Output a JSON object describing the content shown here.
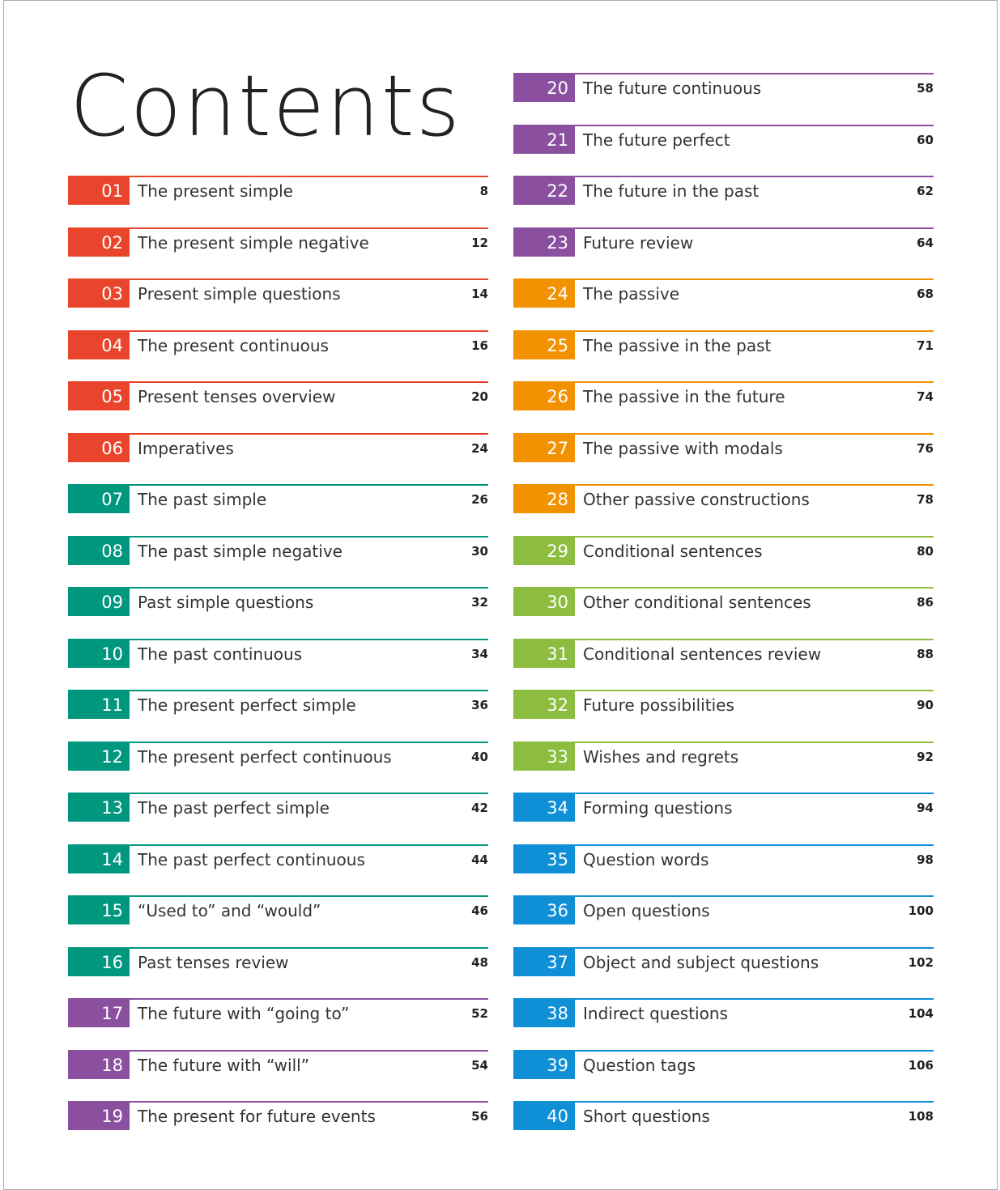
{
  "title": "Contents",
  "entries": [
    {
      "number": "01",
      "title": "The present simple",
      "page": 8,
      "color": "#e8452c"
    },
    {
      "number": "02",
      "title": "The present simple negative",
      "page": 12,
      "color": "#e8452c"
    },
    {
      "number": "03",
      "title": "Present simple questions",
      "page": 14,
      "color": "#e8452c"
    },
    {
      "number": "04",
      "title": "The present continuous",
      "page": 16,
      "color": "#e8452c"
    },
    {
      "number": "05",
      "title": "Present tenses overview",
      "page": 20,
      "color": "#e8452c"
    },
    {
      "number": "06",
      "title": "Imperatives",
      "page": 24,
      "color": "#e8452c"
    },
    {
      "number": "07",
      "title": "The past simple",
      "page": 26,
      "color": "#00977f"
    },
    {
      "number": "08",
      "title": "The past simple negative",
      "page": 30,
      "color": "#00977f"
    },
    {
      "number": "09",
      "title": "Past simple questions",
      "page": 32,
      "color": "#00977f"
    },
    {
      "number": "10",
      "title": "The past continuous",
      "page": 34,
      "color": "#00977f"
    },
    {
      "number": "11",
      "title": "The present perfect simple",
      "page": 36,
      "color": "#00977f"
    },
    {
      "number": "12",
      "title": "The present perfect continuous",
      "page": 40,
      "color": "#00977f"
    },
    {
      "number": "13",
      "title": "The past perfect simple",
      "page": 42,
      "color": "#00977f"
    },
    {
      "number": "14",
      "title": "The past perfect continuous",
      "page": 44,
      "color": "#00977f"
    },
    {
      "number": "15",
      "title": "“Used to” and “would”",
      "page": 46,
      "color": "#00977f"
    },
    {
      "number": "16",
      "title": "Past tenses review",
      "page": 48,
      "color": "#00977f"
    },
    {
      "number": "17",
      "title": "The future with “going to”",
      "page": 52,
      "color": "#8b4fa0"
    },
    {
      "number": "18",
      "title": "The future with “will”",
      "page": 54,
      "color": "#8b4fa0"
    },
    {
      "number": "19",
      "title": "The present for future events",
      "page": 56,
      "color": "#8b4fa0"
    },
    {
      "number": "20",
      "title": "The future continuous",
      "page": 58,
      "color": "#8b4fa0"
    },
    {
      "number": "21",
      "title": "The future perfect",
      "page": 60,
      "color": "#8b4fa0"
    },
    {
      "number": "22",
      "title": "The future in the past",
      "page": 62,
      "color": "#8b4fa0"
    },
    {
      "number": "23",
      "title": "Future review",
      "page": 64,
      "color": "#8b4fa0"
    },
    {
      "number": "24",
      "title": "The passive",
      "page": 68,
      "color": "#f39200"
    },
    {
      "number": "25",
      "title": "The passive in the past",
      "page": 71,
      "color": "#f39200"
    },
    {
      "number": "26",
      "title": "The passive in the future",
      "page": 74,
      "color": "#f39200"
    },
    {
      "number": "27",
      "title": "The passive with modals",
      "page": 76,
      "color": "#f39200"
    },
    {
      "number": "28",
      "title": "Other passive constructions",
      "page": 78,
      "color": "#f39200"
    },
    {
      "number": "29",
      "title": "Conditional sentences",
      "page": 80,
      "color": "#8cbd3f"
    },
    {
      "number": "30",
      "title": "Other conditional sentences",
      "page": 86,
      "color": "#8cbd3f"
    },
    {
      "number": "31",
      "title": "Conditional sentences review",
      "page": 88,
      "color": "#8cbd3f"
    },
    {
      "number": "32",
      "title": "Future possibilities",
      "page": 90,
      "color": "#8cbd3f"
    },
    {
      "number": "33",
      "title": "Wishes and regrets",
      "page": 92,
      "color": "#8cbd3f"
    },
    {
      "number": "34",
      "title": "Forming questions",
      "page": 94,
      "color": "#0f8fd6"
    },
    {
      "number": "35",
      "title": "Question words",
      "page": 98,
      "color": "#0f8fd6"
    },
    {
      "number": "36",
      "title": "Open questions",
      "page": 100,
      "color": "#0f8fd6"
    },
    {
      "number": "37",
      "title": "Object and subject questions",
      "page": 102,
      "color": "#0f8fd6"
    },
    {
      "number": "38",
      "title": "Indirect questions",
      "page": 104,
      "color": "#0f8fd6"
    },
    {
      "number": "39",
      "title": "Question tags",
      "page": 106,
      "color": "#0f8fd6"
    },
    {
      "number": "40",
      "title": "Short questions",
      "page": 108,
      "color": "#0f8fd6"
    }
  ]
}
